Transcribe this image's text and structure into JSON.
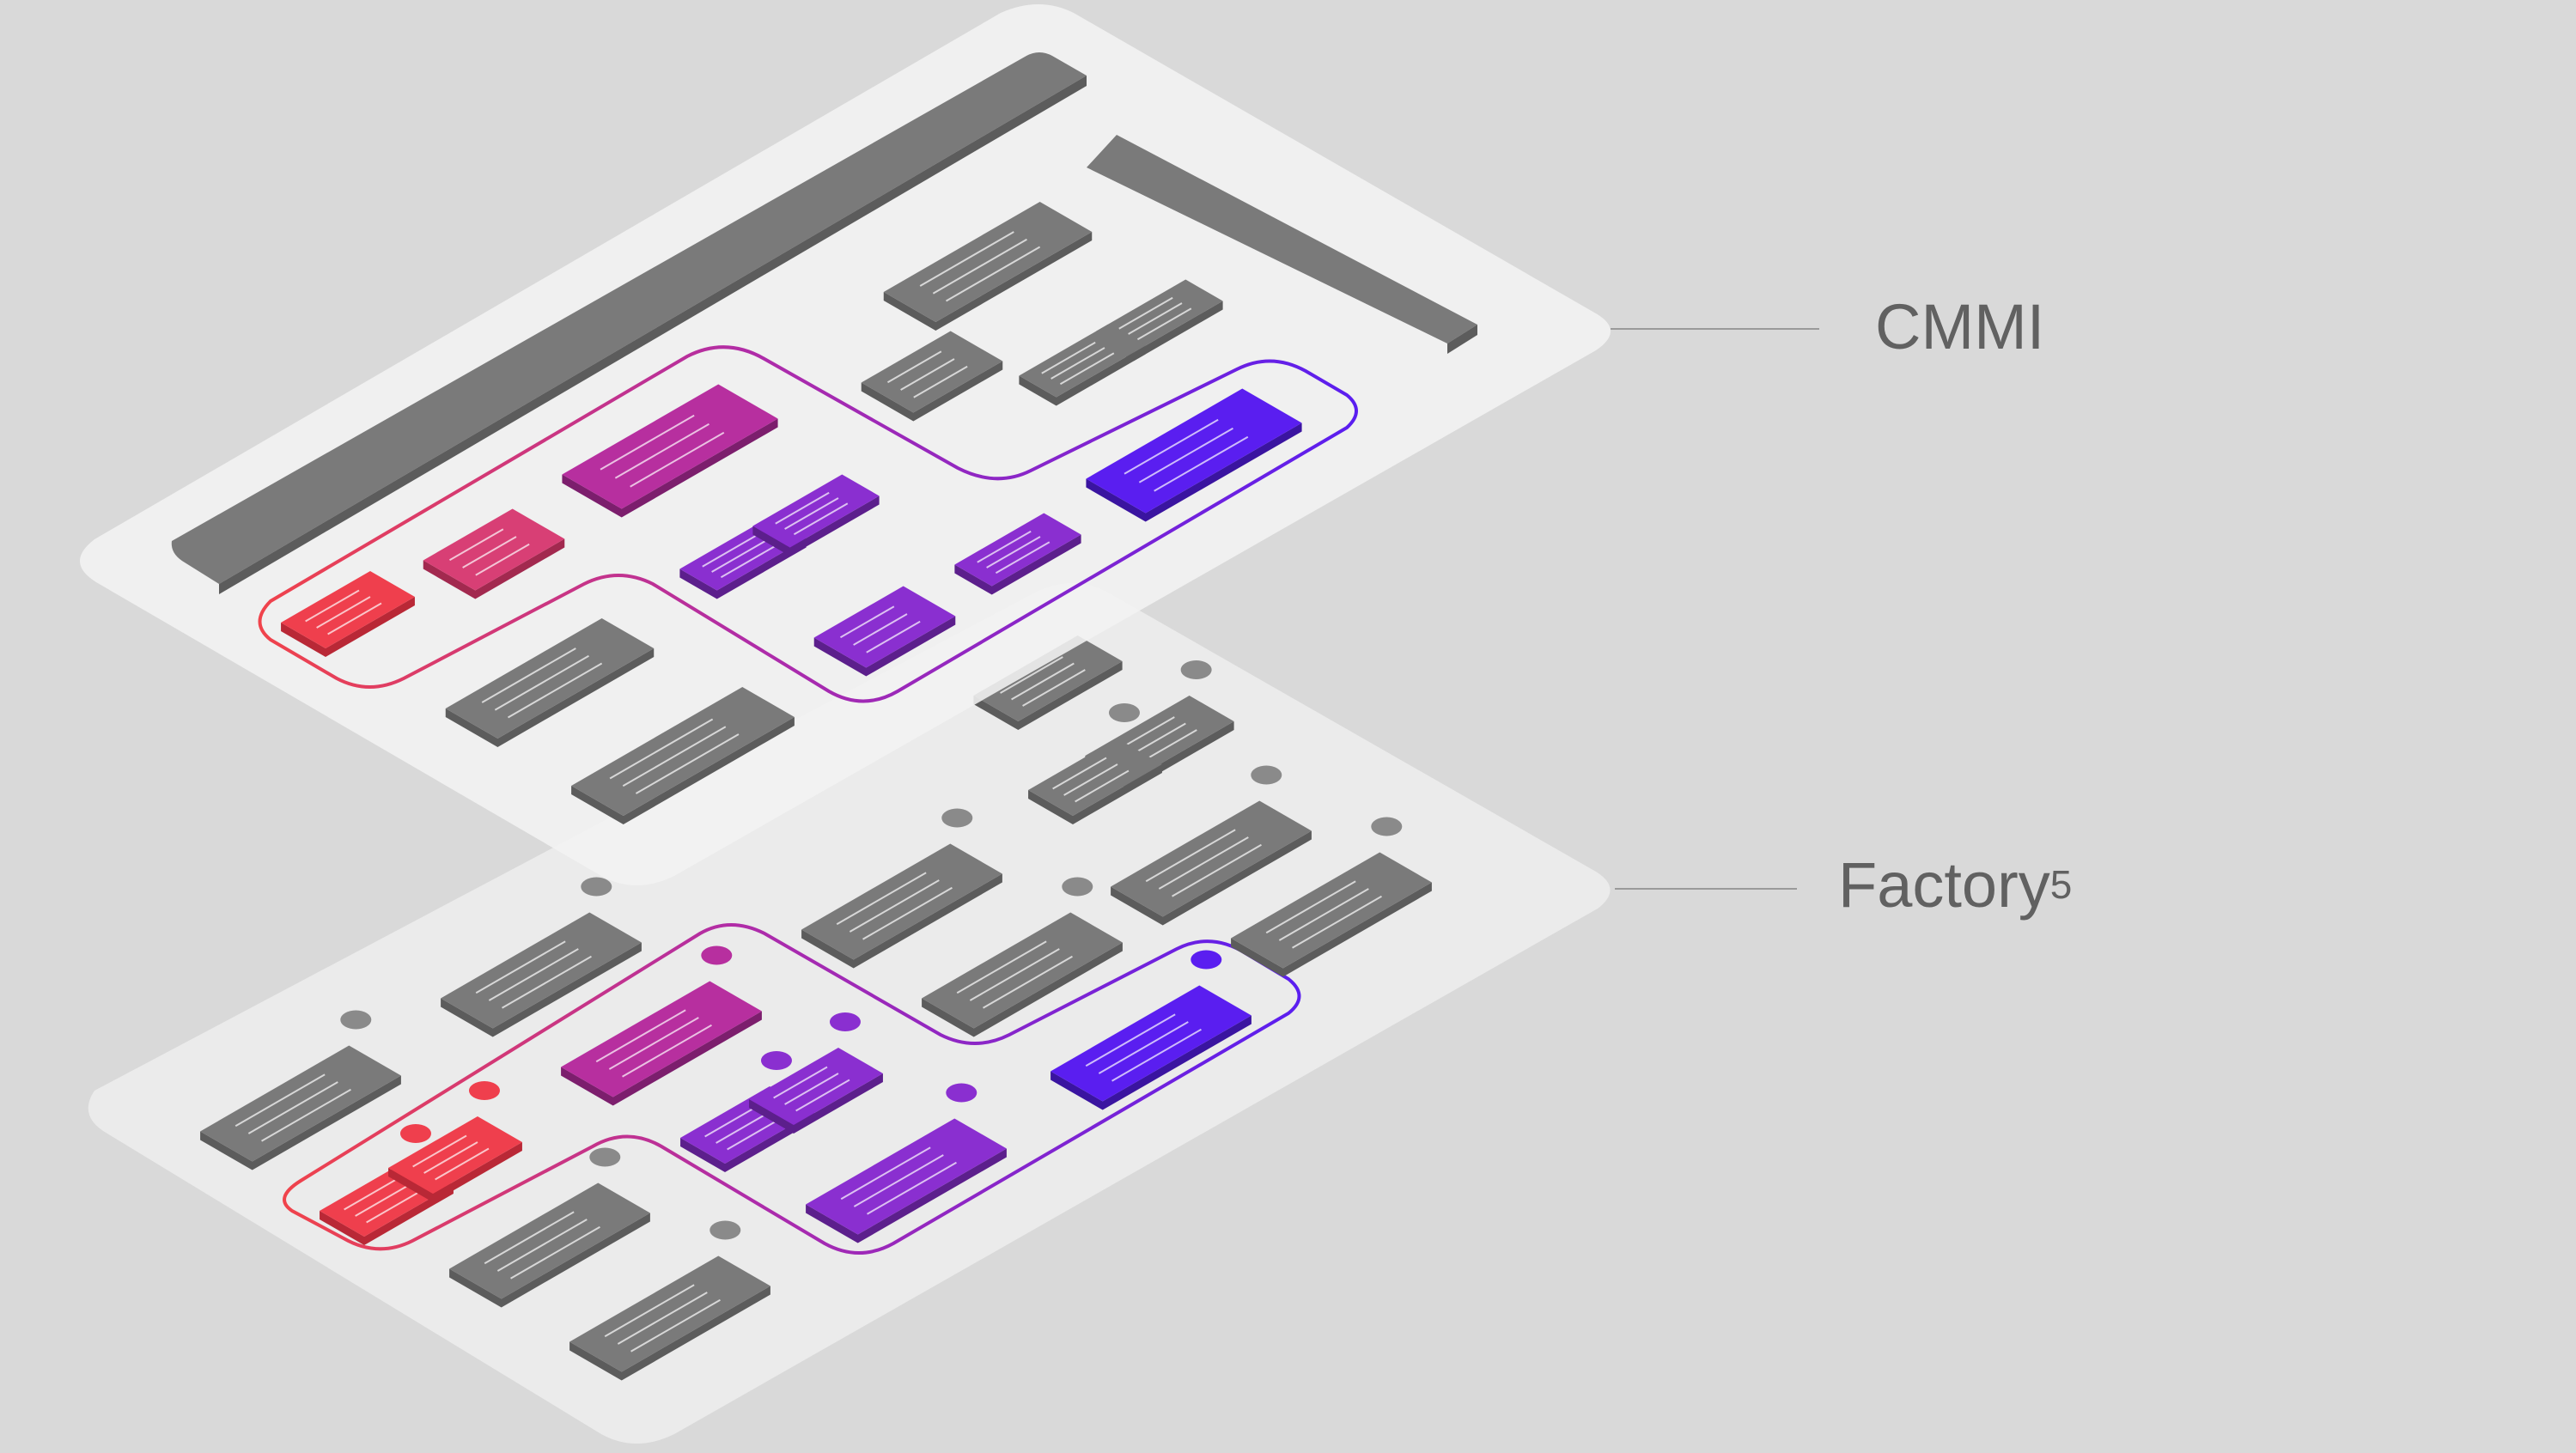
{
  "layers": [
    {
      "name": "CMMI",
      "role": "top layer"
    },
    {
      "name": "Factory",
      "superscript": "5",
      "role": "bottom layer"
    }
  ],
  "colors": {
    "background": "#d9d9d9",
    "plate": "#f2f2f2",
    "plate_bottom": "#ebebeb",
    "block": "#7a7a7a",
    "block_side": "#5c5c5c",
    "red": "#ef3f4d",
    "pink": "#d83f75",
    "magenta": "#b72f9f",
    "purple": "#8a2fd0",
    "violet": "#5a1ef0",
    "label": "#616161",
    "leader": "#9a9a9a"
  },
  "icons": [
    "block-icon",
    "node-icon",
    "leader-line",
    "path-outline"
  ]
}
